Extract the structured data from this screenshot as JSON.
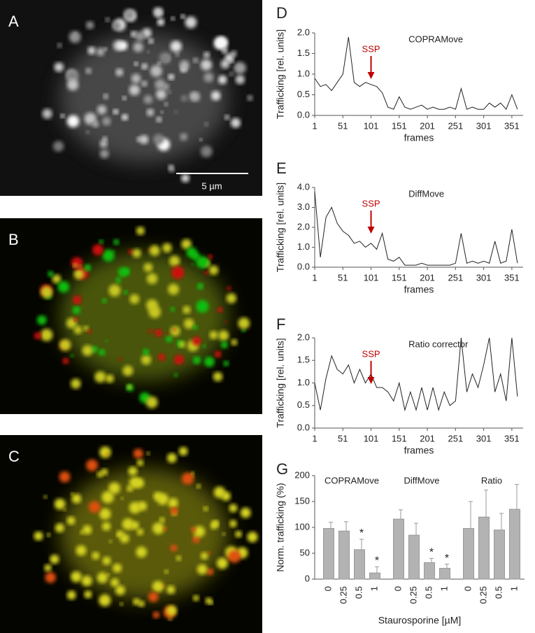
{
  "images": [
    {
      "panel": "A",
      "scale_bar": "5 µm"
    },
    {
      "panel": "B"
    },
    {
      "panel": "C"
    }
  ],
  "chart_data": [
    {
      "type": "line",
      "panel": "D",
      "title": "COPRAMove",
      "ylabel": "Trafficking [rel. units]",
      "xlabel": "frames",
      "annotation": {
        "text": "SSP",
        "x": 101,
        "color": "#c00000"
      },
      "x": [
        1,
        11,
        21,
        31,
        41,
        51,
        61,
        71,
        81,
        91,
        101,
        111,
        121,
        131,
        141,
        151,
        161,
        171,
        181,
        191,
        201,
        211,
        221,
        231,
        241,
        251,
        261,
        271,
        281,
        291,
        301,
        311,
        321,
        331,
        341,
        351,
        361
      ],
      "values": [
        0.9,
        0.7,
        0.75,
        0.6,
        0.8,
        1.0,
        1.9,
        0.8,
        0.7,
        0.8,
        0.75,
        0.7,
        0.55,
        0.2,
        0.15,
        0.45,
        0.2,
        0.15,
        0.2,
        0.25,
        0.15,
        0.2,
        0.15,
        0.15,
        0.2,
        0.15,
        0.65,
        0.15,
        0.2,
        0.15,
        0.15,
        0.3,
        0.2,
        0.3,
        0.15,
        0.5,
        0.15
      ],
      "color": "#222222",
      "xlim": [
        1,
        371
      ],
      "xticks": [
        1,
        51,
        101,
        151,
        201,
        251,
        301,
        351
      ],
      "ylim": [
        0,
        2
      ],
      "yticks": [
        {
          "value": 0,
          "label": "0.0"
        },
        {
          "value": 0.5,
          "label": "0.5"
        },
        {
          "value": 1,
          "label": "1.0"
        },
        {
          "value": 1.5,
          "label": "1.5"
        },
        {
          "value": 2,
          "label": "2.0"
        }
      ]
    },
    {
      "type": "line",
      "panel": "E",
      "title": "DiffMove",
      "ylabel": "Trafficking [rel. units]",
      "xlabel": "frames",
      "annotation": {
        "text": "SSP",
        "x": 101,
        "color": "#c00000"
      },
      "x": [
        1,
        11,
        21,
        31,
        41,
        51,
        61,
        71,
        81,
        91,
        101,
        111,
        121,
        131,
        141,
        151,
        161,
        171,
        181,
        191,
        201,
        211,
        221,
        231,
        241,
        251,
        261,
        271,
        281,
        291,
        301,
        311,
        321,
        331,
        341,
        351,
        361
      ],
      "values": [
        3.8,
        0.5,
        2.5,
        3.0,
        2.2,
        1.8,
        1.6,
        1.2,
        1.3,
        1.0,
        1.2,
        0.9,
        1.7,
        0.4,
        0.3,
        0.5,
        0.1,
        0.1,
        0.1,
        0.2,
        0.1,
        0.1,
        0.1,
        0.1,
        0.1,
        0.2,
        1.7,
        0.2,
        0.3,
        0.2,
        0.3,
        0.2,
        1.3,
        0.2,
        0.3,
        1.9,
        0.2
      ],
      "color": "#222222",
      "xlim": [
        1,
        371
      ],
      "xticks": [
        1,
        51,
        101,
        151,
        201,
        251,
        301,
        351
      ],
      "ylim": [
        0,
        4
      ],
      "yticks": [
        {
          "value": 0,
          "label": "0.0"
        },
        {
          "value": 1,
          "label": "1.0"
        },
        {
          "value": 2,
          "label": "2.0"
        },
        {
          "value": 3,
          "label": "3.0"
        },
        {
          "value": 4,
          "label": "4.0"
        }
      ]
    },
    {
      "type": "line",
      "panel": "F",
      "title": "Ratio corrector",
      "ylabel": "Trafficking [rel. units]",
      "xlabel": "frames",
      "annotation": {
        "text": "SSP",
        "x": 101,
        "color": "#c00000"
      },
      "x": [
        1,
        11,
        21,
        31,
        41,
        51,
        61,
        71,
        81,
        91,
        101,
        111,
        121,
        131,
        141,
        151,
        161,
        171,
        181,
        191,
        201,
        211,
        221,
        231,
        241,
        251,
        261,
        271,
        281,
        291,
        301,
        311,
        321,
        331,
        341,
        351,
        361
      ],
      "values": [
        1.0,
        0.4,
        1.1,
        1.6,
        1.3,
        1.2,
        1.4,
        1.0,
        1.3,
        1.0,
        1.2,
        0.9,
        0.9,
        0.8,
        0.6,
        1.0,
        0.4,
        0.8,
        0.4,
        0.9,
        0.4,
        0.9,
        0.4,
        0.8,
        0.5,
        0.6,
        2.0,
        0.8,
        1.2,
        0.9,
        1.4,
        2.0,
        0.8,
        1.2,
        0.6,
        2.0,
        0.7
      ],
      "color": "#222222",
      "xlim": [
        1,
        371
      ],
      "xticks": [
        1,
        51,
        101,
        151,
        201,
        251,
        301,
        351
      ],
      "ylim": [
        0,
        2
      ],
      "yticks": [
        {
          "value": 0,
          "label": "0.0"
        },
        {
          "value": 0.5,
          "label": "0.5"
        },
        {
          "value": 1,
          "label": "1.0"
        },
        {
          "value": 1.5,
          "label": "1.5"
        },
        {
          "value": 2,
          "label": "2.0"
        }
      ]
    },
    {
      "type": "bar",
      "panel": "G",
      "ylabel": "Norm. trafficking (%)",
      "xlabel": "Staurosporine [µM]",
      "categories": [
        "0",
        "0.25",
        "0.5",
        "1"
      ],
      "series": [
        {
          "name": "COPRAMove",
          "color": "#b3b3b3",
          "values": [
            98,
            93,
            57,
            12
          ],
          "errors": [
            12,
            18,
            20,
            12
          ],
          "markers": [
            null,
            null,
            "*",
            "*"
          ]
        },
        {
          "name": "DiffMove",
          "color": "#b3b3b3",
          "values": [
            116,
            85,
            32,
            21
          ],
          "errors": [
            18,
            23,
            8,
            8
          ],
          "markers": [
            null,
            null,
            "*",
            "*"
          ]
        },
        {
          "name": "Ratio",
          "color": "#b3b3b3",
          "values": [
            98,
            120,
            95,
            135
          ],
          "errors": [
            52,
            52,
            32,
            48
          ],
          "markers": [
            null,
            null,
            null,
            null
          ]
        }
      ],
      "ylim": [
        0,
        200
      ],
      "yticks": [
        0,
        50,
        100,
        150,
        200
      ]
    }
  ]
}
